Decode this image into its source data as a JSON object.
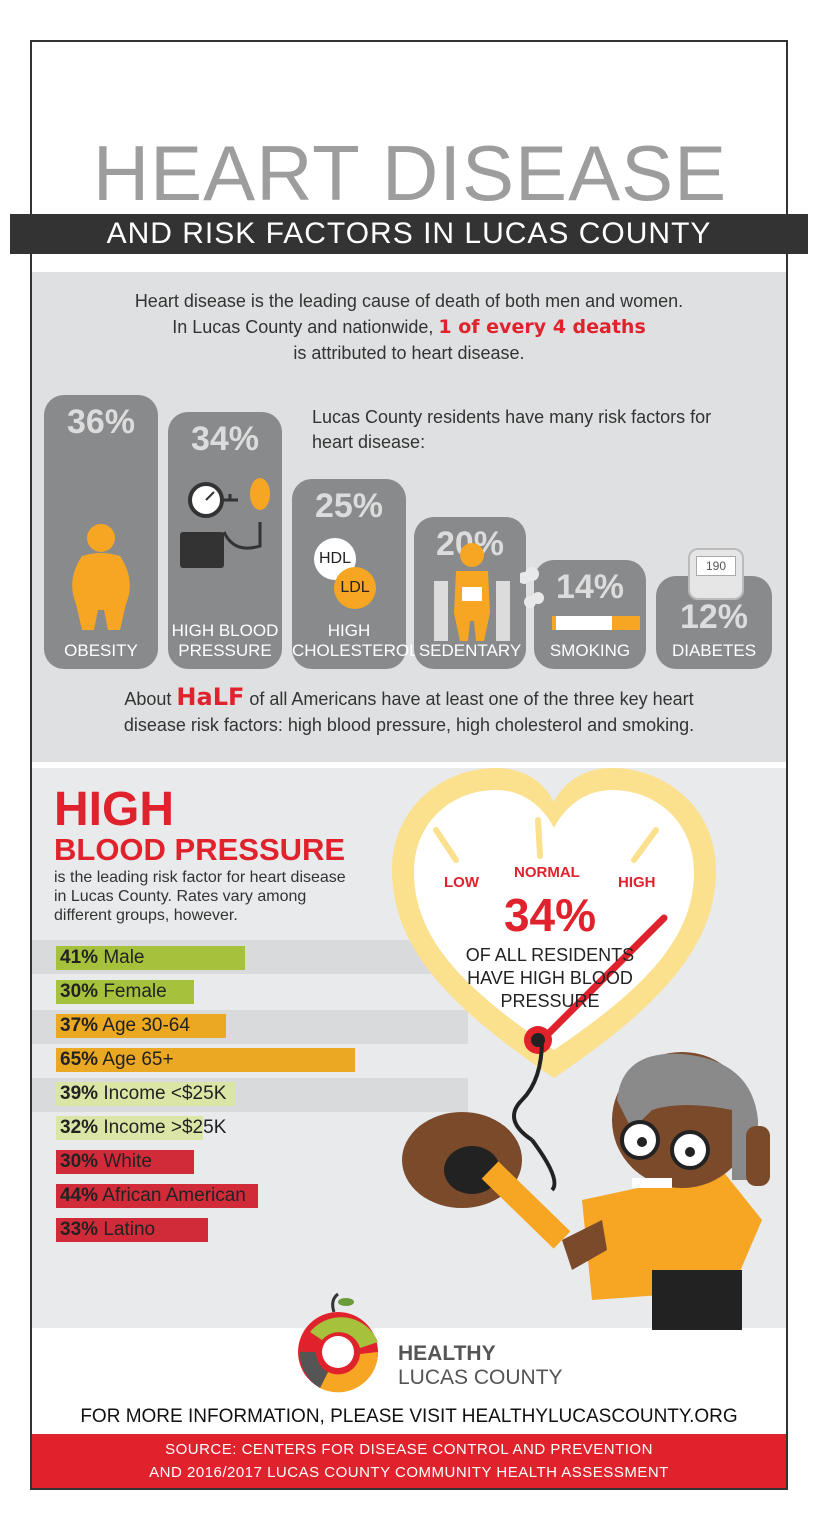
{
  "header": {
    "title": "HEART DISEASE",
    "subtitle": "AND RISK FACTORS IN LUCAS COUNTY"
  },
  "intro": {
    "line1": "Heart disease is the leading cause of death of both men and women.",
    "line2_prefix": "In Lucas County and nationwide, ",
    "line2_highlight": "1 of every 4 deaths",
    "line3": "is attributed to heart disease."
  },
  "risk_factors": {
    "intro": "Lucas County residents have many risk factors for heart disease:",
    "items": [
      {
        "pct": "36%",
        "label": "OBESITY"
      },
      {
        "pct": "34%",
        "label": "HIGH BLOOD PRESSURE"
      },
      {
        "pct": "25%",
        "label": "HIGH CHOLESTEROL"
      },
      {
        "pct": "20%",
        "label": "SEDENTARY"
      },
      {
        "pct": "14%",
        "label": "SMOKING"
      },
      {
        "pct": "12%",
        "label": "DIABETES"
      }
    ],
    "hdl": "HDL",
    "ldl": "LDL",
    "meter_reading": "190"
  },
  "half_note": {
    "prefix": "About ",
    "highlight": "HaLF",
    "line1_rest": " of all Americans have at least one of the three key heart",
    "line2": "disease risk factors: high blood pressure, high cholesterol and smoking."
  },
  "hbp": {
    "title1": "HIGH",
    "title2": "BLOOD PRESSURE",
    "desc": "is the leading risk factor for heart disease in Lucas County. Rates vary among different groups, however.",
    "groups": [
      {
        "pct": "41%",
        "label": "Male",
        "value": 41,
        "color": "#a6c23c"
      },
      {
        "pct": "30%",
        "label": "Female",
        "value": 30,
        "color": "#a6c23c"
      },
      {
        "pct": "37%",
        "label": "Age 30-64",
        "value": 37,
        "color": "#eaa823"
      },
      {
        "pct": "65%",
        "label": "Age 65+",
        "value": 65,
        "color": "#eaa823"
      },
      {
        "pct": "39%",
        "label": "Income <$25K",
        "value": 39,
        "color": "#dbe6a6"
      },
      {
        "pct": "32%",
        "label": "Income >$25K",
        "value": 32,
        "color": "#dbe6a6"
      },
      {
        "pct": "30%",
        "label": "White",
        "value": 30,
        "color": "#d12b3a"
      },
      {
        "pct": "44%",
        "label": "African American",
        "value": 44,
        "color": "#d12b3a"
      },
      {
        "pct": "33%",
        "label": "Latino",
        "value": 33,
        "color": "#d12b3a"
      }
    ]
  },
  "gauge": {
    "low": "LOW",
    "normal": "NORMAL",
    "high": "HIGH",
    "pct": "34%",
    "line1": "OF ALL RESIDENTS",
    "line2": "HAVE HIGH BLOOD",
    "line3": "PRESSURE"
  },
  "logo": {
    "line1": "HEALTHY",
    "line2": "LUCAS COUNTY"
  },
  "footer": {
    "more_info": "FOR MORE INFORMATION, PLEASE VISIT HEALTHYLUCASCOUNTY.ORG",
    "source1": "SOURCE: CENTERS FOR DISEASE CONTROL AND PREVENTION",
    "source2": "AND 2016/2017 LUCAS COUNTY COMMUNITY HEALTH ASSESSMENT"
  },
  "colors": {
    "accent_red": "#e0222c",
    "pill_grey": "#888a8c",
    "orange": "#f6a623",
    "heart_yellow": "#fbe08e"
  }
}
